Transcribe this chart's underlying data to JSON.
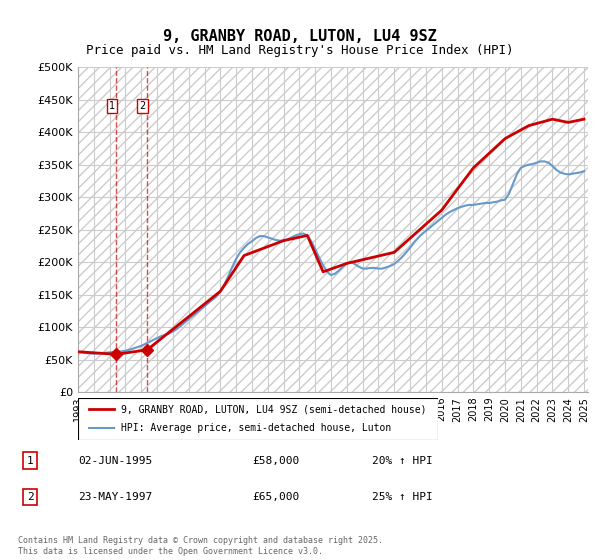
{
  "title": "9, GRANBY ROAD, LUTON, LU4 9SZ",
  "subtitle": "Price paid vs. HM Land Registry's House Price Index (HPI)",
  "ylabel": "",
  "ylim": [
    0,
    500000
  ],
  "yticks": [
    0,
    50000,
    100000,
    150000,
    200000,
    250000,
    300000,
    350000,
    400000,
    450000,
    500000
  ],
  "ytick_labels": [
    "£0",
    "£50K",
    "£100K",
    "£150K",
    "£200K",
    "£250K",
    "£300K",
    "£350K",
    "£400K",
    "£450K",
    "£500K"
  ],
  "hpi_color": "#6699cc",
  "price_color": "#cc0000",
  "marker_color": "#cc0000",
  "background_hatch_color": "#dddddd",
  "transactions": [
    {
      "label": "1",
      "date": "02-JUN-1995",
      "price": 58000,
      "year_x": 1995.42,
      "hpi_pct": "20% ↑ HPI"
    },
    {
      "label": "2",
      "date": "23-MAY-1997",
      "price": 65000,
      "year_x": 1997.38,
      "hpi_pct": "25% ↑ HPI"
    }
  ],
  "legend_entry1": "9, GRANBY ROAD, LUTON, LU4 9SZ (semi-detached house)",
  "legend_entry2": "HPI: Average price, semi-detached house, Luton",
  "footer": "Contains HM Land Registry data © Crown copyright and database right 2025.\nThis data is licensed under the Open Government Licence v3.0.",
  "hpi_data_x": [
    1993.0,
    1993.25,
    1993.5,
    1993.75,
    1994.0,
    1994.25,
    1994.5,
    1994.75,
    1995.0,
    1995.25,
    1995.5,
    1995.75,
    1996.0,
    1996.25,
    1996.5,
    1996.75,
    1997.0,
    1997.25,
    1997.5,
    1997.75,
    1998.0,
    1998.25,
    1998.5,
    1998.75,
    1999.0,
    1999.25,
    1999.5,
    1999.75,
    2000.0,
    2000.25,
    2000.5,
    2000.75,
    2001.0,
    2001.25,
    2001.5,
    2001.75,
    2002.0,
    2002.25,
    2002.5,
    2002.75,
    2003.0,
    2003.25,
    2003.5,
    2003.75,
    2004.0,
    2004.25,
    2004.5,
    2004.75,
    2005.0,
    2005.25,
    2005.5,
    2005.75,
    2006.0,
    2006.25,
    2006.5,
    2006.75,
    2007.0,
    2007.25,
    2007.5,
    2007.75,
    2008.0,
    2008.25,
    2008.5,
    2008.75,
    2009.0,
    2009.25,
    2009.5,
    2009.75,
    2010.0,
    2010.25,
    2010.5,
    2010.75,
    2011.0,
    2011.25,
    2011.5,
    2011.75,
    2012.0,
    2012.25,
    2012.5,
    2012.75,
    2013.0,
    2013.25,
    2013.5,
    2013.75,
    2014.0,
    2014.25,
    2014.5,
    2014.75,
    2015.0,
    2015.25,
    2015.5,
    2015.75,
    2016.0,
    2016.25,
    2016.5,
    2016.75,
    2017.0,
    2017.25,
    2017.5,
    2017.75,
    2018.0,
    2018.25,
    2018.5,
    2018.75,
    2019.0,
    2019.25,
    2019.5,
    2019.75,
    2020.0,
    2020.25,
    2020.5,
    2020.75,
    2021.0,
    2021.25,
    2021.5,
    2021.75,
    2022.0,
    2022.25,
    2022.5,
    2022.75,
    2023.0,
    2023.25,
    2023.5,
    2023.75,
    2024.0,
    2024.25,
    2024.5,
    2024.75,
    2025.0
  ],
  "hpi_data_y": [
    62000,
    61000,
    60000,
    59500,
    59000,
    59500,
    60000,
    60500,
    61000,
    61500,
    62000,
    62500,
    63500,
    65000,
    67000,
    69000,
    71000,
    74000,
    77000,
    80000,
    83000,
    86000,
    88000,
    90000,
    93000,
    97000,
    102000,
    107000,
    112000,
    117000,
    122000,
    127000,
    132000,
    137000,
    142000,
    147000,
    155000,
    165000,
    178000,
    192000,
    205000,
    215000,
    222000,
    228000,
    232000,
    237000,
    240000,
    240000,
    238000,
    236000,
    234000,
    233000,
    233000,
    235000,
    238000,
    241000,
    243000,
    244000,
    241000,
    232000,
    220000,
    207000,
    195000,
    185000,
    180000,
    182000,
    187000,
    193000,
    198000,
    200000,
    197000,
    193000,
    190000,
    190000,
    191000,
    191000,
    190000,
    190000,
    192000,
    194000,
    197000,
    202000,
    208000,
    215000,
    222000,
    230000,
    237000,
    243000,
    248000,
    253000,
    258000,
    263000,
    268000,
    273000,
    277000,
    280000,
    283000,
    285000,
    287000,
    288000,
    288000,
    289000,
    290000,
    291000,
    291000,
    292000,
    293000,
    295000,
    296000,
    305000,
    320000,
    335000,
    345000,
    348000,
    350000,
    351000,
    353000,
    355000,
    355000,
    353000,
    348000,
    342000,
    338000,
    336000,
    335000,
    336000,
    337000,
    338000,
    340000
  ],
  "price_data_x": [
    1993.0,
    1995.42,
    1997.38,
    2002.0,
    2003.5,
    2006.0,
    2007.5,
    2008.5,
    2010.0,
    2013.0,
    2016.0,
    2018.0,
    2020.0,
    2021.5,
    2023.0,
    2024.0,
    2025.0
  ],
  "price_data_y": [
    62000,
    58000,
    65000,
    155000,
    210000,
    233000,
    241000,
    185000,
    198000,
    215000,
    280000,
    345000,
    390000,
    410000,
    420000,
    415000,
    420000
  ],
  "xlim": [
    1993.0,
    2025.25
  ],
  "xtick_years": [
    1993,
    1994,
    1995,
    1996,
    1997,
    1998,
    1999,
    2000,
    2001,
    2002,
    2003,
    2004,
    2005,
    2006,
    2007,
    2008,
    2009,
    2010,
    2011,
    2012,
    2013,
    2014,
    2015,
    2016,
    2017,
    2018,
    2019,
    2020,
    2021,
    2022,
    2023,
    2024,
    2025
  ]
}
